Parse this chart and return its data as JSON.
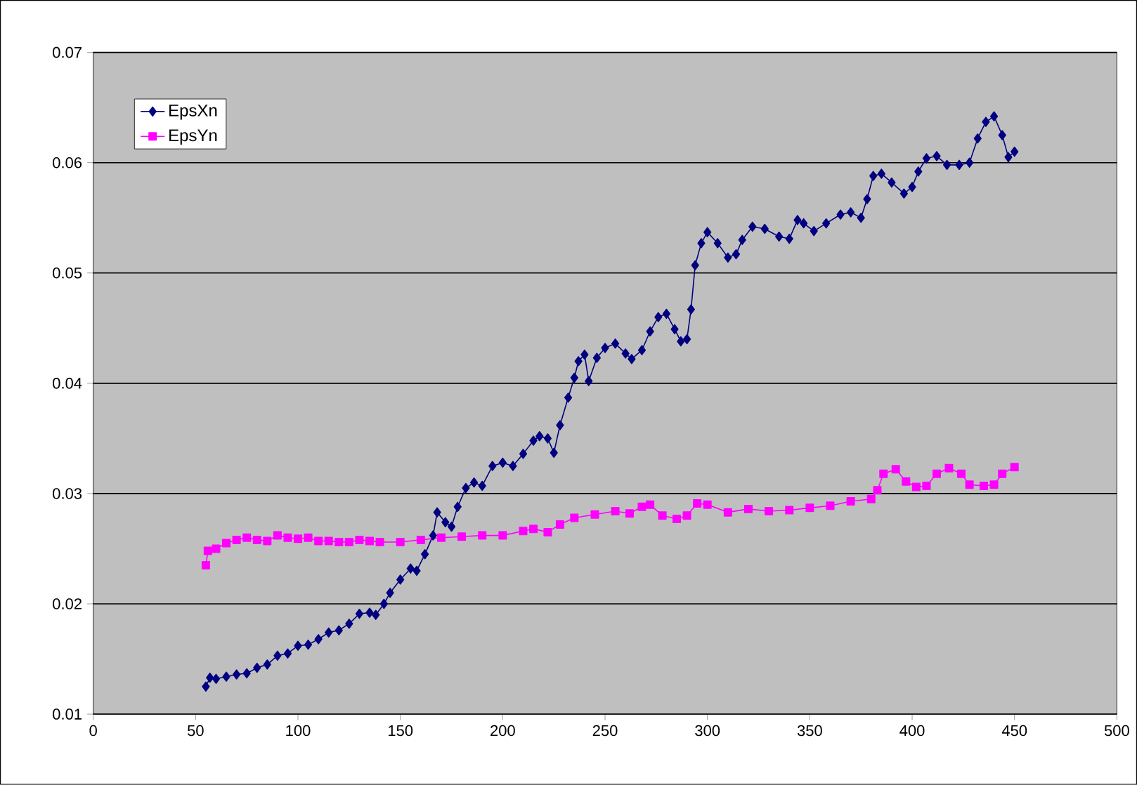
{
  "chart_data": {
    "type": "line",
    "xlim": [
      0,
      500
    ],
    "xticks": [
      0,
      50,
      100,
      150,
      200,
      250,
      300,
      350,
      400,
      450,
      500
    ],
    "ylim": [
      0.01,
      0.07
    ],
    "yticks": [
      0.01,
      0.02,
      0.03,
      0.04,
      0.05,
      0.06,
      0.07
    ],
    "grid": "y",
    "legend": "top left",
    "series": [
      {
        "name": "EpsXn",
        "color": "#000080",
        "marker": "diamond",
        "x": [
          55,
          57,
          60,
          65,
          70,
          75,
          80,
          85,
          90,
          95,
          100,
          105,
          110,
          115,
          120,
          125,
          130,
          135,
          138,
          142,
          145,
          150,
          155,
          158,
          162,
          166,
          168,
          172,
          175,
          178,
          182,
          186,
          190,
          195,
          200,
          205,
          210,
          215,
          218,
          222,
          225,
          228,
          232,
          235,
          237,
          240,
          242,
          246,
          250,
          255,
          260,
          263,
          268,
          272,
          276,
          280,
          284,
          287,
          290,
          292,
          294,
          297,
          300,
          305,
          310,
          314,
          317,
          322,
          328,
          335,
          340,
          344,
          347,
          352,
          358,
          365,
          370,
          375,
          378,
          381,
          385,
          390,
          396,
          400,
          403,
          407,
          412,
          417,
          423,
          428,
          432,
          436,
          440,
          444,
          447,
          450
        ],
        "values": [
          0.0125,
          0.0133,
          0.0132,
          0.0134,
          0.0136,
          0.0137,
          0.0142,
          0.0145,
          0.0153,
          0.0155,
          0.0162,
          0.0163,
          0.0168,
          0.0174,
          0.0176,
          0.0182,
          0.0191,
          0.0192,
          0.019,
          0.02,
          0.021,
          0.0222,
          0.0232,
          0.023,
          0.0245,
          0.0262,
          0.0283,
          0.0274,
          0.027,
          0.0288,
          0.0305,
          0.031,
          0.0307,
          0.0325,
          0.0328,
          0.0325,
          0.0336,
          0.0348,
          0.0352,
          0.035,
          0.0337,
          0.0362,
          0.0387,
          0.0405,
          0.042,
          0.0426,
          0.0402,
          0.0423,
          0.0432,
          0.0436,
          0.0427,
          0.0422,
          0.043,
          0.0447,
          0.046,
          0.0463,
          0.0449,
          0.0438,
          0.044,
          0.0467,
          0.0507,
          0.0527,
          0.0537,
          0.0527,
          0.0514,
          0.0517,
          0.053,
          0.0542,
          0.054,
          0.0533,
          0.0531,
          0.0548,
          0.0545,
          0.0538,
          0.0545,
          0.0553,
          0.0555,
          0.055,
          0.0567,
          0.0588,
          0.059,
          0.0582,
          0.0572,
          0.0578,
          0.0592,
          0.0604,
          0.0606,
          0.0598,
          0.0598,
          0.06,
          0.0622,
          0.0637,
          0.0642,
          0.0625,
          0.0605,
          0.061
        ]
      },
      {
        "name": "EpsYn",
        "color": "#ff00ff",
        "marker": "square",
        "x": [
          55,
          56,
          60,
          65,
          70,
          75,
          80,
          85,
          90,
          95,
          100,
          105,
          110,
          115,
          120,
          125,
          130,
          135,
          140,
          150,
          160,
          170,
          180,
          190,
          200,
          210,
          215,
          222,
          228,
          235,
          245,
          255,
          262,
          268,
          272,
          278,
          285,
          290,
          295,
          300,
          310,
          320,
          330,
          340,
          350,
          360,
          370,
          380,
          383,
          386,
          392,
          397,
          402,
          407,
          412,
          418,
          424,
          428,
          435,
          440,
          444,
          450
        ],
        "values": [
          0.0235,
          0.0248,
          0.025,
          0.0255,
          0.0258,
          0.026,
          0.0258,
          0.0257,
          0.0262,
          0.026,
          0.0259,
          0.026,
          0.0257,
          0.0257,
          0.0256,
          0.0256,
          0.0258,
          0.0257,
          0.0256,
          0.0256,
          0.0258,
          0.026,
          0.0261,
          0.0262,
          0.0262,
          0.0266,
          0.0268,
          0.0265,
          0.0272,
          0.0278,
          0.0281,
          0.0284,
          0.0282,
          0.0288,
          0.029,
          0.028,
          0.0277,
          0.028,
          0.0291,
          0.029,
          0.0283,
          0.0286,
          0.0284,
          0.0285,
          0.0287,
          0.0289,
          0.0293,
          0.0295,
          0.0303,
          0.0318,
          0.0322,
          0.0311,
          0.0306,
          0.0307,
          0.0318,
          0.0323,
          0.0318,
          0.0308,
          0.0307,
          0.0308,
          0.0318,
          0.0324
        ]
      }
    ]
  }
}
